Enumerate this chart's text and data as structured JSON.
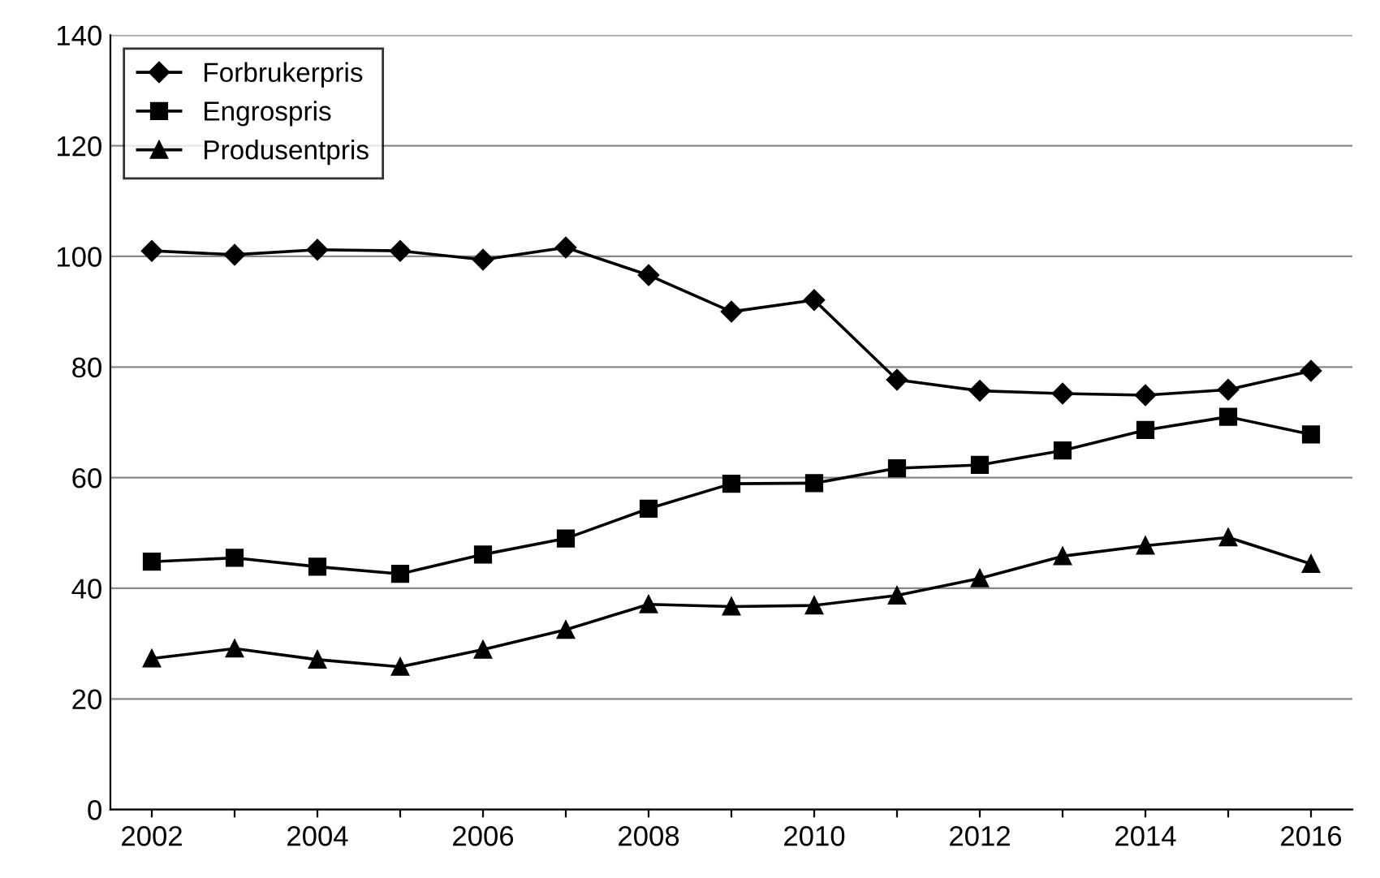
{
  "chart_data": {
    "type": "line",
    "categories": [
      "2002",
      null,
      "2004",
      null,
      "2006",
      null,
      "2008",
      null,
      "2010",
      null,
      "2012",
      null,
      "2014",
      null,
      "2016"
    ],
    "series": [
      {
        "name": "Forbrukerpris",
        "color": "#000000",
        "marker": "diamond",
        "values": [
          101,
          100.3,
          101.2,
          101,
          99.4,
          101.6,
          96.6,
          90,
          92.1,
          77.7,
          75.7,
          75.2,
          74.9,
          75.9,
          79.3
        ]
      },
      {
        "name": "Engrospris",
        "color": "#000000",
        "marker": "square",
        "values": [
          44.8,
          45.5,
          43.9,
          42.6,
          46.1,
          49,
          54.4,
          58.9,
          59,
          61.7,
          62.3,
          64.9,
          68.6,
          71,
          67.8
        ]
      },
      {
        "name": "Produsentpris",
        "color": "#000000",
        "marker": "triangle",
        "values": [
          27.3,
          29.1,
          27.1,
          25.8,
          28.9,
          32.5,
          37.1,
          36.7,
          36.9,
          38.7,
          41.8,
          45.8,
          47.7,
          49.2,
          44.4
        ]
      }
    ],
    "ylim": [
      0,
      140
    ],
    "yticks": [
      0,
      20,
      40,
      60,
      80,
      100,
      120,
      140
    ],
    "grid": "y",
    "legend": "top left"
  }
}
